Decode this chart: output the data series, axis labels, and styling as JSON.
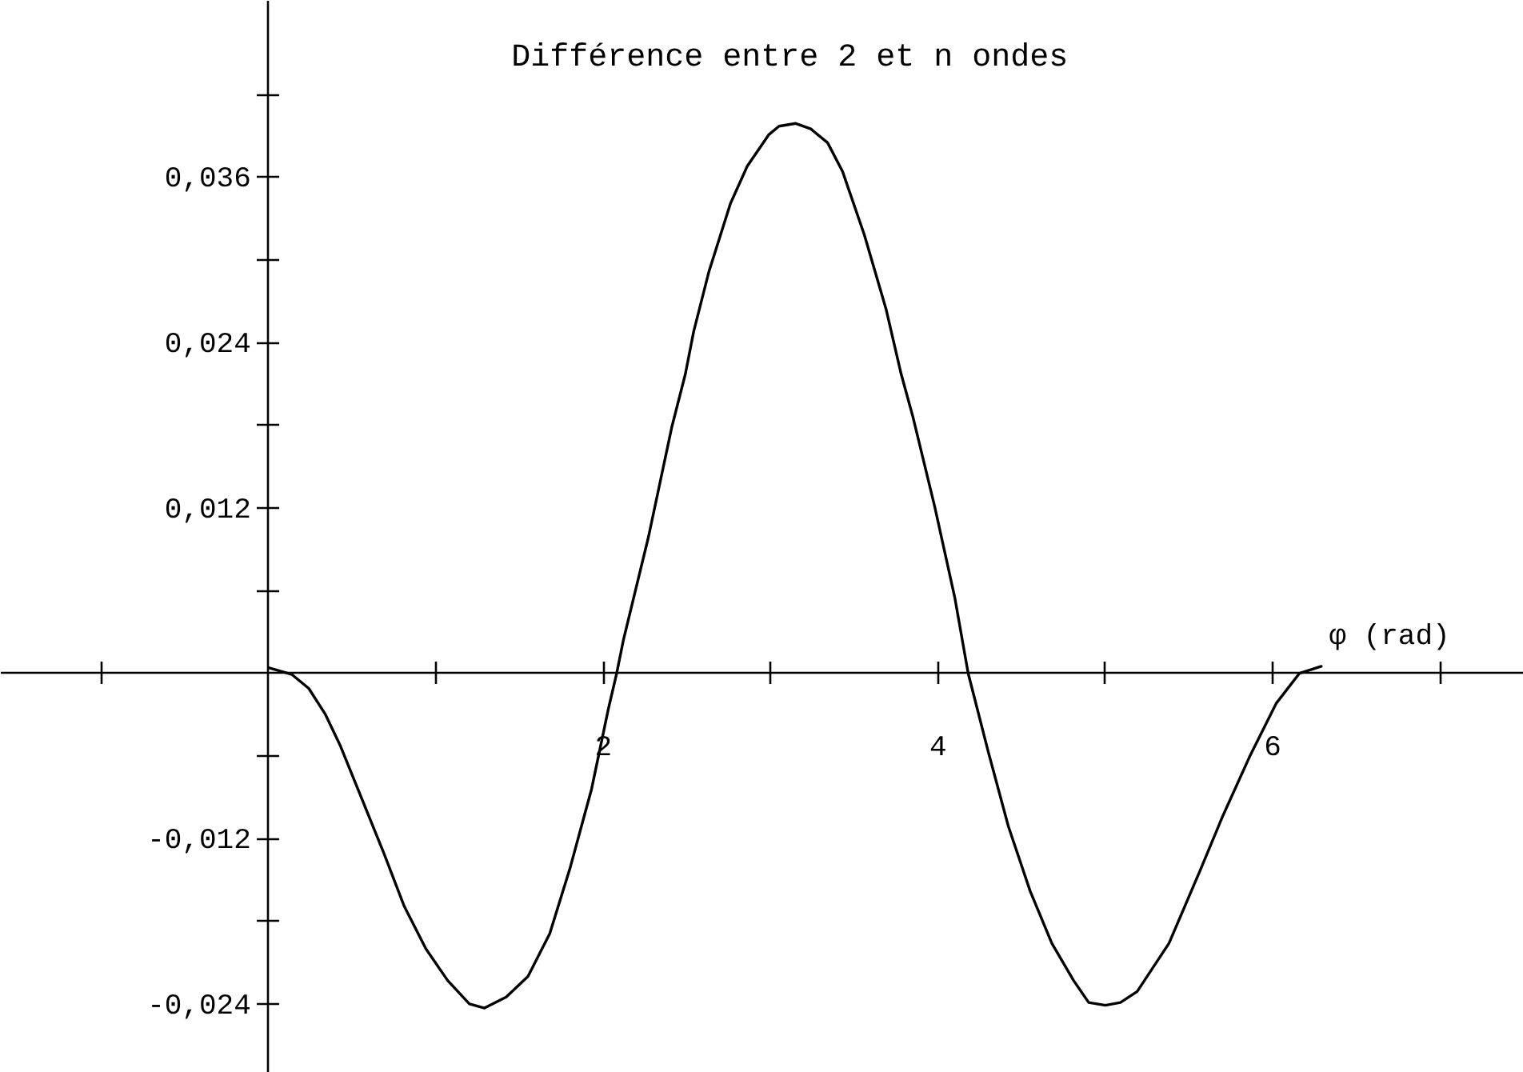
{
  "chart_data": {
    "type": "line",
    "title": "Différence entre 2 et n ondes",
    "xlabel": "φ (rad)",
    "xlim": [
      -1.6,
      7.5
    ],
    "ylim": [
      -0.029,
      0.0488
    ],
    "xticks": [
      {
        "value": -1,
        "label": null
      },
      {
        "value": 1,
        "label": null
      },
      2,
      {
        "value": 3,
        "label": null
      },
      4,
      {
        "value": 5,
        "label": null
      },
      6,
      {
        "value": 7,
        "label": null
      }
    ],
    "yticks": [
      {
        "value": -0.024,
        "label": "-0,024"
      },
      {
        "value": -0.018,
        "label": null
      },
      {
        "value": -0.012,
        "label": "-0,012"
      },
      {
        "value": -0.006,
        "label": null
      },
      {
        "value": 0.006,
        "label": null
      },
      {
        "value": 0.012,
        "label": "0,012"
      },
      {
        "value": 0.018,
        "label": null
      },
      {
        "value": 0.024,
        "label": "0,024"
      },
      {
        "value": 0.03,
        "label": null
      },
      {
        "value": 0.036,
        "label": "0,036"
      },
      {
        "value": 0.042,
        "label": null
      }
    ],
    "grid": false,
    "series": [
      {
        "color": "#000000",
        "x": [
          0,
          0.14,
          0.24,
          0.34,
          0.43,
          0.56,
          0.69,
          0.81,
          0.94,
          1.07,
          1.2,
          1.29,
          1.42,
          1.55,
          1.68,
          1.8,
          1.93,
          2.03,
          2.08,
          2.12,
          2.19,
          2.27,
          2.41,
          2.49,
          2.54,
          2.63,
          2.76,
          2.86,
          2.99,
          3.05,
          3.15,
          3.24,
          3.34,
          3.43,
          3.56,
          3.69,
          3.78,
          3.85,
          3.98,
          4.1,
          4.18,
          4.3,
          4.42,
          4.55,
          4.68,
          4.81,
          4.9,
          5.0,
          5.09,
          5.19,
          5.38,
          5.57,
          5.7,
          5.86,
          6.02,
          6.16,
          6.29
        ],
        "values": [
          0.0004,
          -0.0001,
          -0.0011,
          -0.003,
          -0.0053,
          -0.0092,
          -0.0131,
          -0.0169,
          -0.02,
          -0.0223,
          -0.024,
          -0.0243,
          -0.0235,
          -0.022,
          -0.0189,
          -0.0142,
          -0.0084,
          -0.0026,
          0,
          0.0024,
          0.0059,
          0.0099,
          0.0179,
          0.0217,
          0.0248,
          0.0291,
          0.0341,
          0.0368,
          0.0391,
          0.0397,
          0.0399,
          0.0395,
          0.0385,
          0.0364,
          0.0318,
          0.0264,
          0.0217,
          0.0186,
          0.0121,
          0.0055,
          0,
          -0.0057,
          -0.0111,
          -0.0158,
          -0.0196,
          -0.0223,
          -0.0239,
          -0.0241,
          -0.0239,
          -0.0231,
          -0.0196,
          -0.0142,
          -0.0104,
          -0.0061,
          -0.0022,
          0,
          0.0005
        ]
      }
    ]
  }
}
